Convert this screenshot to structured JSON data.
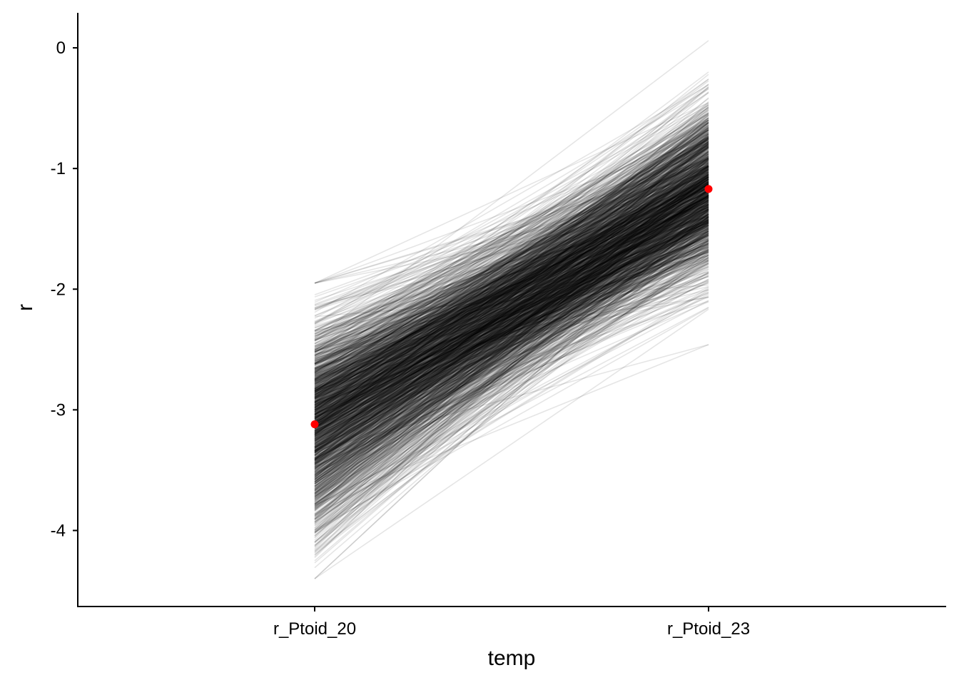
{
  "chart_data": {
    "type": "line",
    "xlabel": "temp",
    "ylabel": "r",
    "categories": [
      "r_Ptoid_20",
      "r_Ptoid_23"
    ],
    "yticks": [
      "0",
      "-1",
      "-2",
      "-3",
      "-4"
    ],
    "ytick_values": [
      0,
      -1,
      -2,
      -3,
      -4
    ],
    "ylim": [
      -4.63,
      0.29
    ],
    "grid": false,
    "legend": "none",
    "draw_lines": {
      "count": 1500,
      "color": "#000000",
      "opacity": 0.1,
      "r_Ptoid_20_mean": -3.12,
      "r_Ptoid_20_sd": 0.43,
      "r_Ptoid_20_range": [
        -4.4,
        -1.95
      ],
      "r_Ptoid_23_mean": -1.17,
      "r_Ptoid_23_sd": 0.35,
      "r_Ptoid_23_range": [
        -2.46,
        0.06
      ],
      "correlation": 0.25
    },
    "series": [
      {
        "values": [
          -3.12,
          -1.17
        ],
        "color": "#ff0000",
        "marker": "point"
      }
    ]
  }
}
